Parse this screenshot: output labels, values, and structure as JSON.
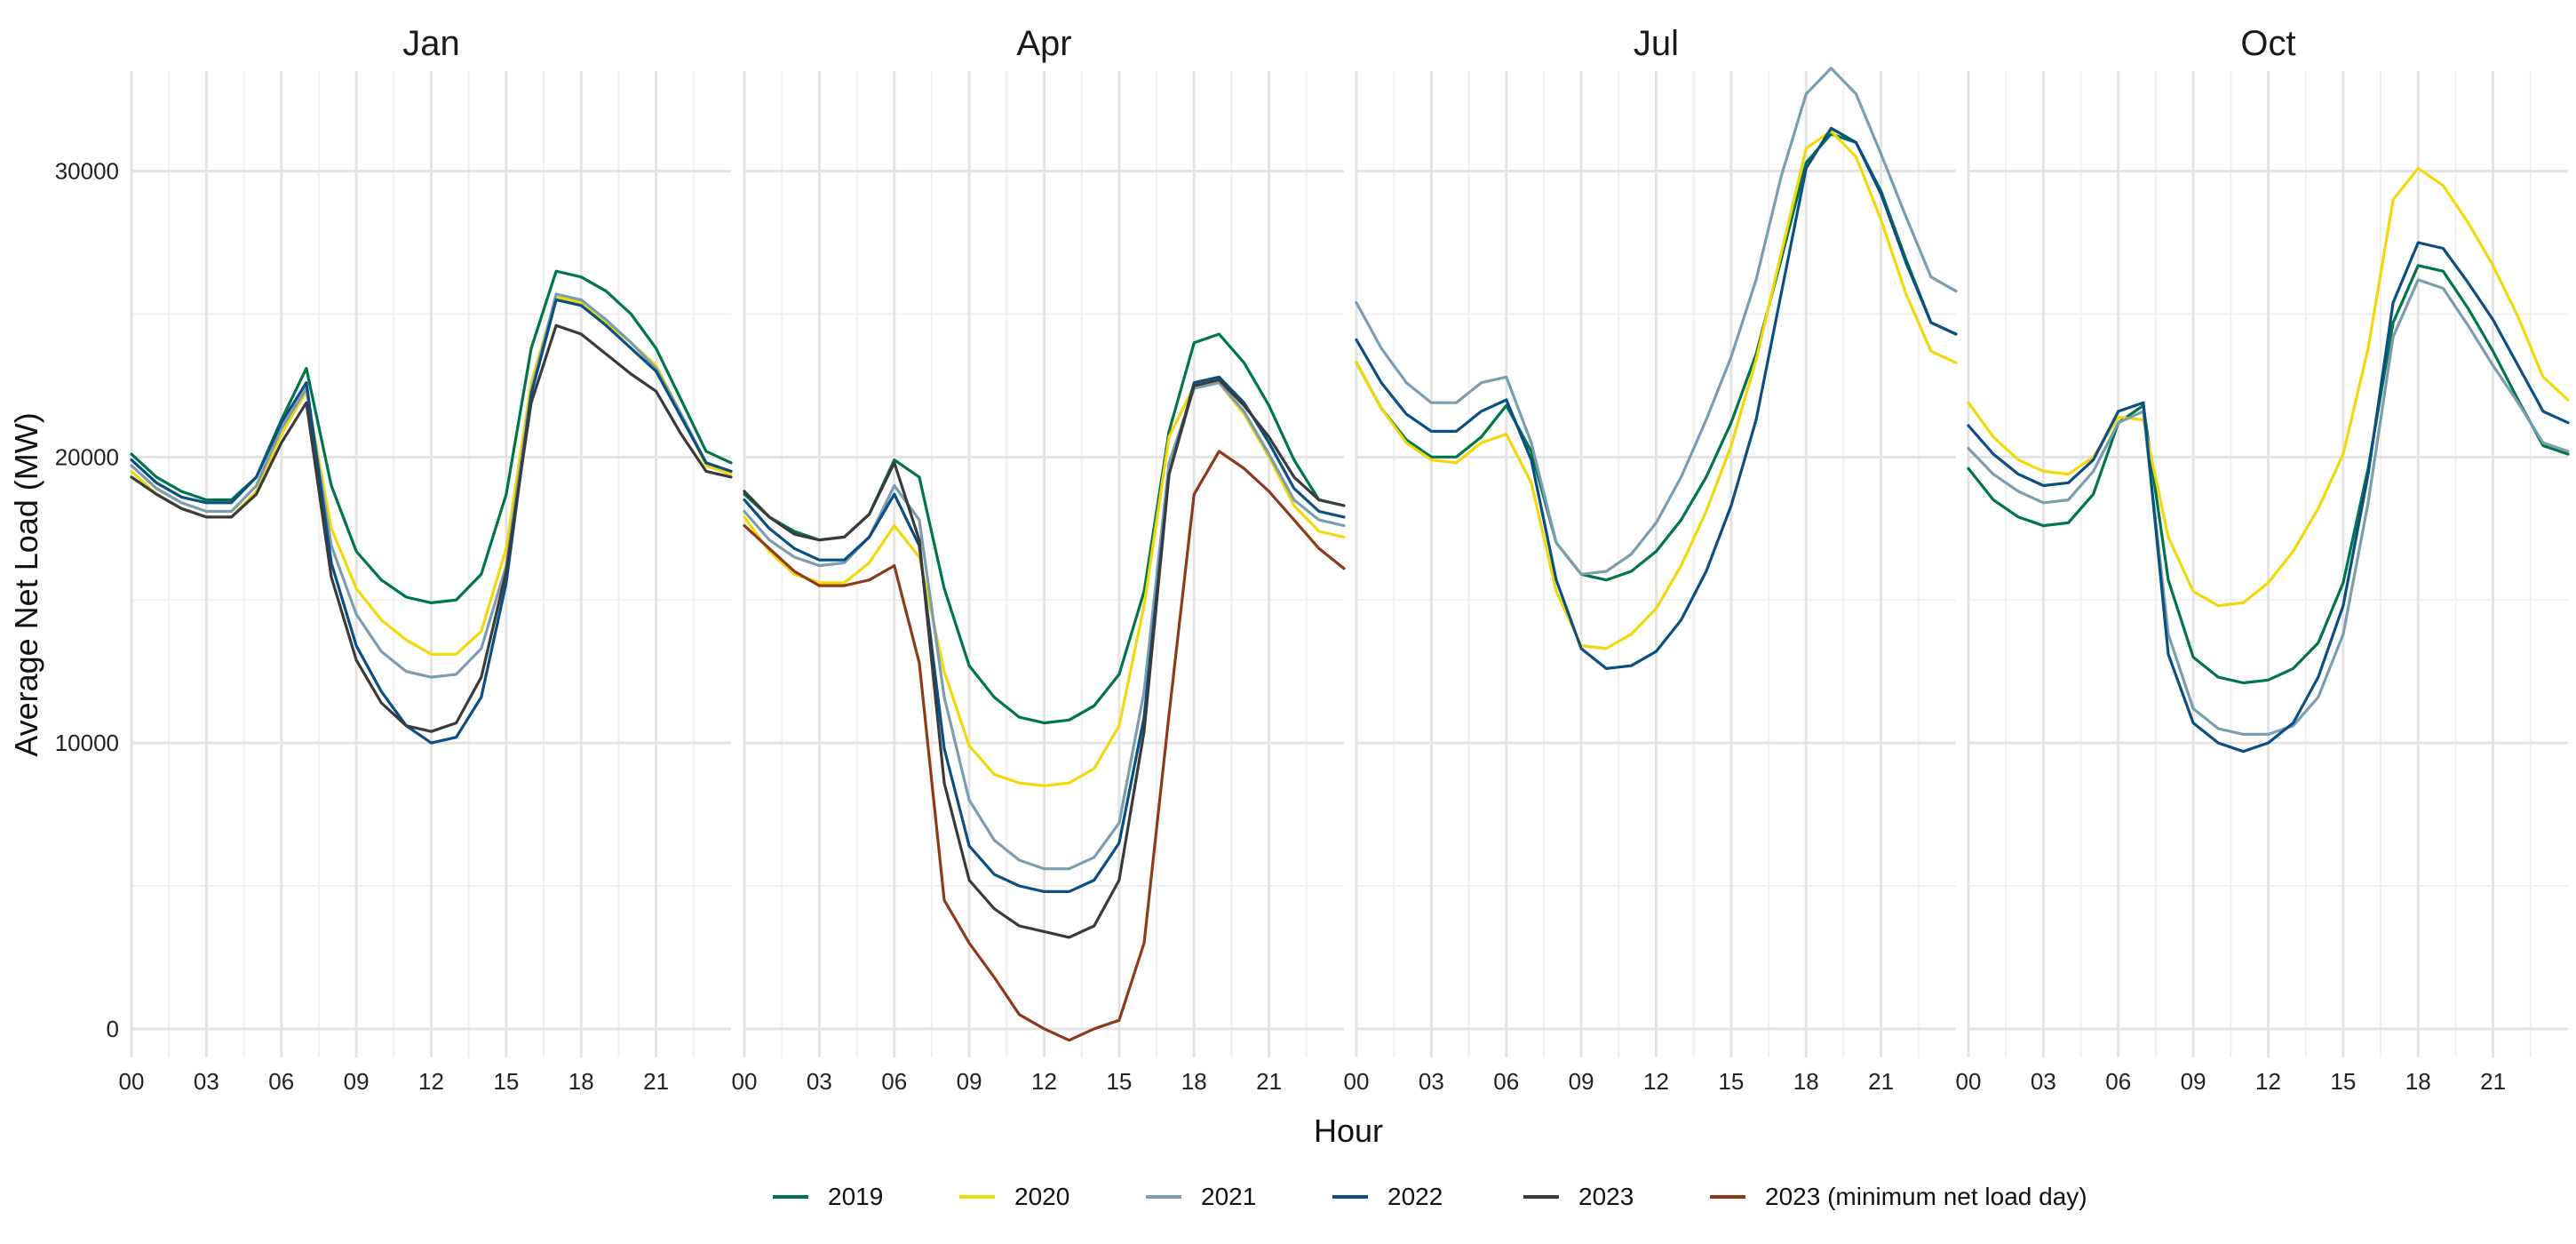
{
  "chart_data": {
    "type": "line",
    "xlabel": "Hour",
    "ylabel": "Average Net Load (MW)",
    "x_tick_labels": [
      "00",
      "03",
      "06",
      "09",
      "12",
      "15",
      "18",
      "21"
    ],
    "y_ticks": [
      0,
      10000,
      20000,
      30000
    ],
    "ylim": [
      -1000,
      33500
    ],
    "xlim": [
      0,
      24
    ],
    "grid": true,
    "legend_position": "bottom",
    "legend": [
      {
        "name": "2019",
        "color": "#00754a"
      },
      {
        "name": "2020",
        "color": "#f2d80a"
      },
      {
        "name": "2021",
        "color": "#7a9db0"
      },
      {
        "name": "2022",
        "color": "#0b4f82"
      },
      {
        "name": "2023",
        "color": "#3a3a3a"
      },
      {
        "name": "2023 (minimum net load day)",
        "color": "#8c3a1a"
      }
    ],
    "hours": [
      0,
      1,
      2,
      3,
      4,
      5,
      6,
      7,
      8,
      9,
      10,
      11,
      12,
      13,
      14,
      15,
      16,
      17,
      18,
      19,
      20,
      21,
      22,
      23,
      24
    ],
    "panels": [
      {
        "title": "Jan",
        "series": [
          {
            "name": "2019",
            "values": [
              20100,
              19300,
              18800,
              18500,
              18500,
              19300,
              21300,
              23100,
              19000,
              16700,
              15700,
              15100,
              14900,
              15000,
              15900,
              18700,
              23800,
              26500,
              26300,
              25800,
              25000,
              23800,
              22000,
              20200,
              19800
            ]
          },
          {
            "name": "2020",
            "values": [
              19500,
              18700,
              18200,
              17900,
              17900,
              18800,
              20800,
              22300,
              17500,
              15400,
              14300,
              13600,
              13100,
              13100,
              13900,
              16800,
              22600,
              25600,
              25400,
              24700,
              24000,
              23200,
              21500,
              19700,
              19400
            ]
          },
          {
            "name": "2021",
            "values": [
              19700,
              18900,
              18400,
              18100,
              18100,
              19000,
              21000,
              22400,
              16900,
              14500,
              13200,
              12500,
              12300,
              12400,
              13300,
              16200,
              22300,
              25700,
              25500,
              24800,
              24000,
              23100,
              21500,
              19800,
              19500
            ]
          },
          {
            "name": "2022",
            "values": [
              19900,
              19100,
              18600,
              18400,
              18400,
              19300,
              21200,
              22600,
              16300,
              13400,
              11800,
              10600,
              10000,
              10200,
              11600,
              15600,
              22200,
              25500,
              25300,
              24600,
              23800,
              23000,
              21400,
              19800,
              19500
            ]
          },
          {
            "name": "2023",
            "values": [
              19300,
              18700,
              18200,
              17900,
              17900,
              18700,
              20500,
              21900,
              15800,
              12900,
              11400,
              10600,
              10400,
              10700,
              12300,
              16000,
              21900,
              24600,
              24300,
              23600,
              22900,
              22300,
              20800,
              19500,
              19300
            ]
          }
        ]
      },
      {
        "title": "Apr",
        "series": [
          {
            "name": "2019",
            "values": [
              18700,
              17900,
              17400,
              17100,
              17200,
              18000,
              19900,
              19300,
              15400,
              12700,
              11600,
              10900,
              10700,
              10800,
              11300,
              12400,
              15300,
              20900,
              24000,
              24300,
              23300,
              21800,
              19900,
              18500,
              18300
            ]
          },
          {
            "name": "2020",
            "values": [
              17900,
              16700,
              15900,
              15600,
              15600,
              16300,
              17600,
              16500,
              12500,
              9900,
              8900,
              8600,
              8500,
              8600,
              9100,
              10600,
              14800,
              20700,
              22500,
              22600,
              21500,
              20000,
              18300,
              17400,
              17200
            ]
          },
          {
            "name": "2021",
            "values": [
              18100,
              17100,
              16500,
              16200,
              16300,
              17200,
              19000,
              17800,
              11600,
              8000,
              6600,
              5900,
              5600,
              5600,
              6000,
              7200,
              11800,
              19800,
              22400,
              22600,
              21600,
              20100,
              18500,
              17800,
              17600
            ]
          },
          {
            "name": "2022",
            "values": [
              18500,
              17500,
              16800,
              16400,
              16400,
              17200,
              18700,
              16900,
              9800,
              6400,
              5400,
              5000,
              4800,
              4800,
              5200,
              6500,
              10900,
              19400,
              22600,
              22800,
              21900,
              20500,
              18900,
              18100,
              17900
            ]
          },
          {
            "name": "2023",
            "values": [
              18800,
              17900,
              17300,
              17100,
              17200,
              18000,
              19800,
              17100,
              8600,
              5200,
              4200,
              3600,
              3400,
              3200,
              3600,
              5200,
              10400,
              19400,
              22500,
              22700,
              21800,
              20700,
              19300,
              18500,
              18300
            ]
          },
          {
            "name": "2023 (minimum net load day)",
            "values": [
              17600,
              16800,
              16000,
              15500,
              15500,
              15700,
              16200,
              12800,
              4500,
              3000,
              1800,
              500,
              0,
              -400,
              0,
              300,
              3000,
              11000,
              18700,
              20200,
              19600,
              18800,
              17800,
              16800,
              16100
            ]
          }
        ]
      },
      {
        "title": "Jul",
        "series": [
          {
            "name": "2019",
            "values": [
              23300,
              21700,
              20600,
              20000,
              20000,
              20700,
              21800,
              20200,
              17000,
              15900,
              15700,
              16000,
              16700,
              17800,
              19300,
              21200,
              23600,
              26900,
              30300,
              31300,
              31000,
              29300,
              26900,
              24700,
              24300
            ]
          },
          {
            "name": "2020",
            "values": [
              23300,
              21700,
              20500,
              19900,
              19800,
              20500,
              20800,
              19100,
              15300,
              13400,
              13300,
              13800,
              14700,
              16200,
              18100,
              20400,
              23400,
              27100,
              30800,
              31400,
              30500,
              28300,
              25700,
              23700,
              23300
            ]
          },
          {
            "name": "2021",
            "values": [
              25400,
              23800,
              22600,
              21900,
              21900,
              22600,
              22800,
              20500,
              17000,
              15900,
              16000,
              16600,
              17700,
              19300,
              21300,
              23500,
              26200,
              29800,
              32700,
              33600,
              32700,
              30600,
              28400,
              26300,
              25800
            ]
          },
          {
            "name": "2022",
            "values": [
              24100,
              22600,
              21500,
              20900,
              20900,
              21600,
              22000,
              19900,
              15700,
              13300,
              12600,
              12700,
              13200,
              14300,
              16000,
              18300,
              21300,
              25700,
              30100,
              31500,
              31000,
              29200,
              26800,
              24700,
              24300
            ]
          }
        ]
      },
      {
        "title": "Oct",
        "series": [
          {
            "name": "2019",
            "values": [
              19600,
              18500,
              17900,
              17600,
              17700,
              18700,
              21200,
              21800,
              15700,
              13000,
              12300,
              12100,
              12200,
              12600,
              13500,
              15600,
              19600,
              24700,
              26700,
              26500,
              25200,
              23700,
              22000,
              20400,
              20100
            ]
          },
          {
            "name": "2020",
            "values": [
              21900,
              20700,
              19900,
              19500,
              19400,
              20000,
              21400,
              21300,
              17200,
              15300,
              14800,
              14900,
              15600,
              16700,
              18200,
              20100,
              23800,
              29000,
              30100,
              29500,
              28200,
              26700,
              24900,
              22800,
              22000
            ]
          },
          {
            "name": "2021",
            "values": [
              20300,
              19400,
              18800,
              18400,
              18500,
              19500,
              21200,
              21600,
              13800,
              11200,
              10500,
              10300,
              10300,
              10600,
              11600,
              13800,
              18400,
              24200,
              26200,
              25900,
              24600,
              23200,
              21900,
              20500,
              20200
            ]
          },
          {
            "name": "2022",
            "values": [
              21100,
              20100,
              19400,
              19000,
              19100,
              19900,
              21600,
              21900,
              13100,
              10700,
              10000,
              9700,
              10000,
              10700,
              12300,
              14800,
              19400,
              25400,
              27500,
              27300,
              26100,
              24800,
              23200,
              21600,
              21200
            ]
          },
          {
            "name": "2023",
            "values": [
              null,
              null,
              null,
              null,
              null,
              null,
              null,
              null,
              null,
              null,
              null,
              null,
              null,
              null,
              null,
              null,
              null,
              null,
              null,
              null,
              null,
              null,
              null,
              null,
              null
            ]
          }
        ]
      }
    ]
  }
}
